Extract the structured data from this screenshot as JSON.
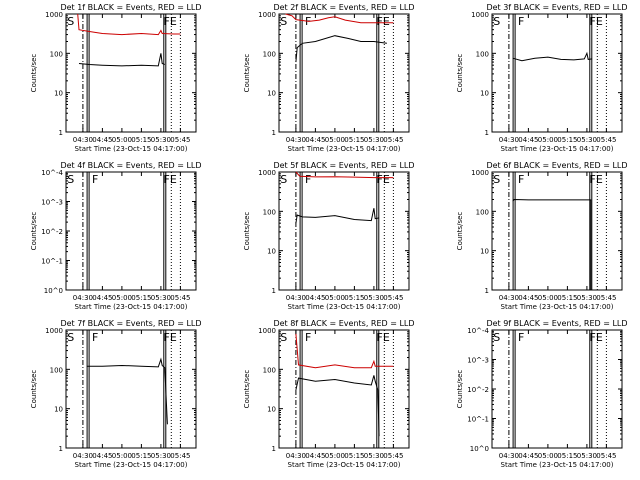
{
  "figure": {
    "colors": {
      "events": "#000000",
      "lld": "#cc0000",
      "axes": "#000000",
      "background": "#ffffff"
    },
    "time_ticks": [
      "04:30",
      "04:45",
      "05:00",
      "05:15",
      "05:30",
      "05:45"
    ],
    "y_ticks_linear": [
      "1",
      "10",
      "100",
      "1000"
    ],
    "y_ticks_exp": [
      "10^0",
      "10^-1",
      "10^-2",
      "10^-3",
      "10^-4"
    ]
  },
  "chart_data": [
    {
      "type": "line",
      "panel": 1,
      "title": "Det 1f BLACK = Events, RED = LLD",
      "ylabel": "Counts/sec",
      "xlabel": "Start Time (23-Oct-15 04:17:00)",
      "yscale": "log",
      "ylim": [
        1,
        1000
      ],
      "xlim": [
        "04:17",
        "05:57"
      ],
      "markers": [
        {
          "label": "S",
          "time": "04:18"
        },
        {
          "label": "FE",
          "time": "05:32"
        }
      ],
      "vlines": {
        "dashdot": [
          "04:30"
        ],
        "solid": [
          "04:34",
          "05:33"
        ],
        "dotted": [
          "05:38",
          "05:45"
        ]
      },
      "series": [
        {
          "color": "red",
          "points": [
            [
              "04:26",
              1000
            ],
            [
              "04:27",
              400
            ],
            [
              "04:35",
              360
            ],
            [
              "04:45",
              320
            ],
            [
              "05:00",
              300
            ],
            [
              "05:15",
              320
            ],
            [
              "05:28",
              300
            ],
            [
              "05:30",
              380
            ],
            [
              "05:31",
              320
            ],
            [
              "05:40",
              310
            ],
            [
              "05:45",
              310
            ]
          ]
        },
        {
          "color": "black",
          "points": [
            [
              "04:27",
              55
            ],
            [
              "04:35",
              52
            ],
            [
              "04:45",
              50
            ],
            [
              "05:00",
              48
            ],
            [
              "05:15",
              50
            ],
            [
              "05:28",
              48
            ],
            [
              "05:30",
              100
            ],
            [
              "05:31",
              55
            ],
            [
              "05:33",
              52
            ]
          ]
        }
      ]
    },
    {
      "type": "line",
      "panel": 2,
      "title": "Det 2f BLACK = Events, RED = LLD",
      "ylabel": "Counts/sec",
      "xlabel": "Start Time (23-Oct-15 04:17:00)",
      "yscale": "log",
      "ylim": [
        1,
        1000
      ],
      "xlim": [
        "04:17",
        "05:57"
      ],
      "markers": [
        {
          "label": "S",
          "time": "04:18"
        },
        {
          "label": "F",
          "time": "04:37"
        },
        {
          "label": "FE",
          "time": "05:32"
        }
      ],
      "vlines": {
        "dashdot": [
          "04:30"
        ],
        "solid": [
          "04:34",
          "05:33"
        ],
        "dotted": [
          "05:38",
          "05:45"
        ]
      },
      "series": [
        {
          "color": "red",
          "points": [
            [
              "04:22",
              1000
            ],
            [
              "04:27",
              900
            ],
            [
              "04:30",
              720
            ],
            [
              "04:40",
              650
            ],
            [
              "04:48",
              700
            ],
            [
              "04:55",
              800
            ],
            [
              "05:00",
              850
            ],
            [
              "05:08",
              700
            ],
            [
              "05:20",
              600
            ],
            [
              "05:32",
              600
            ],
            [
              "05:40",
              600
            ],
            [
              "05:45",
              600
            ]
          ]
        },
        {
          "color": "black",
          "points": [
            [
              "04:30",
              60
            ],
            [
              "04:31",
              140
            ],
            [
              "04:35",
              180
            ],
            [
              "04:45",
              200
            ],
            [
              "05:00",
              280
            ],
            [
              "05:10",
              240
            ],
            [
              "05:20",
              200
            ],
            [
              "05:30",
              200
            ],
            [
              "05:40",
              180
            ]
          ]
        }
      ]
    },
    {
      "type": "line",
      "panel": 3,
      "title": "Det 3f BLACK = Events, RED = LLD",
      "ylabel": "Counts/sec",
      "xlabel": "Start Time (23-Oct-15 04:17:00)",
      "yscale": "log",
      "ylim": [
        1,
        1000
      ],
      "xlim": [
        "04:17",
        "05:57"
      ],
      "markers": [
        {
          "label": "S",
          "time": "04:18"
        },
        {
          "label": "F",
          "time": "04:37"
        },
        {
          "label": "FE",
          "time": "05:32"
        }
      ],
      "vlines": {
        "dashdot": [
          "04:30"
        ],
        "solid": [
          "04:34",
          "05:33"
        ],
        "dotted": [
          "05:38",
          "05:45"
        ]
      },
      "series": [
        {
          "color": "black",
          "points": [
            [
              "04:33",
              75
            ],
            [
              "04:40",
              65
            ],
            [
              "04:50",
              75
            ],
            [
              "05:00",
              80
            ],
            [
              "05:10",
              70
            ],
            [
              "05:20",
              68
            ],
            [
              "05:28",
              72
            ],
            [
              "05:30",
              100
            ],
            [
              "05:31",
              70
            ],
            [
              "05:34",
              72
            ]
          ]
        }
      ]
    },
    {
      "type": "line",
      "panel": 4,
      "title": "Det 4f BLACK = Events, RED = LLD",
      "ylabel": "Counts/sec",
      "xlabel": "Start Time (23-Oct-15 04:17:00)",
      "yscale": "log",
      "ylim": [
        0.0001,
        1
      ],
      "xlim": [
        "04:17",
        "05:57"
      ],
      "markers": [
        {
          "label": "S",
          "time": "04:18"
        },
        {
          "label": "F",
          "time": "04:37"
        },
        {
          "label": "FE",
          "time": "05:32"
        }
      ],
      "vlines": {
        "dashdot": [
          "04:30"
        ],
        "solid": [
          "04:34",
          "05:33"
        ],
        "dotted": [
          "05:38",
          "05:45"
        ]
      },
      "series": []
    },
    {
      "type": "line",
      "panel": 5,
      "title": "Det 5f BLACK = Events, RED = LLD",
      "ylabel": "Counts/sec",
      "xlabel": "Start Time (23-Oct-15 04:17:00)",
      "yscale": "log",
      "ylim": [
        1,
        1000
      ],
      "xlim": [
        "04:17",
        "05:57"
      ],
      "markers": [
        {
          "label": "S",
          "time": "04:18"
        },
        {
          "label": "F",
          "time": "04:37"
        },
        {
          "label": "FE",
          "time": "05:32"
        }
      ],
      "vlines": {
        "dashdot": [
          "04:30"
        ],
        "solid": [
          "04:34",
          "05:33"
        ],
        "dotted": [
          "05:38",
          "05:45"
        ]
      },
      "series": [
        {
          "color": "red",
          "points": [
            [
              "04:30",
              1000
            ],
            [
              "04:33",
              780
            ],
            [
              "04:45",
              750
            ],
            [
              "05:00",
              760
            ],
            [
              "05:15",
              740
            ],
            [
              "05:30",
              720
            ],
            [
              "05:45",
              720
            ]
          ]
        },
        {
          "color": "black",
          "points": [
            [
              "04:30",
              50
            ],
            [
              "04:31",
              80
            ],
            [
              "04:35",
              72
            ],
            [
              "04:45",
              70
            ],
            [
              "05:00",
              78
            ],
            [
              "05:15",
              62
            ],
            [
              "05:28",
              58
            ],
            [
              "05:30",
              120
            ],
            [
              "05:31",
              65
            ],
            [
              "05:34",
              68
            ]
          ]
        }
      ]
    },
    {
      "type": "line",
      "panel": 6,
      "title": "Det 6f BLACK = Events, RED = LLD",
      "ylabel": "Counts/sec",
      "xlabel": "Start Time (23-Oct-15 04:17:00)",
      "yscale": "log",
      "ylim": [
        1,
        1000
      ],
      "xlim": [
        "04:17",
        "05:57"
      ],
      "markers": [
        {
          "label": "S",
          "time": "04:18"
        },
        {
          "label": "F",
          "time": "04:37"
        },
        {
          "label": "FE",
          "time": "05:32"
        }
      ],
      "vlines": {
        "dashdot": [
          "04:30"
        ],
        "solid": [
          "04:34",
          "05:33"
        ],
        "dotted": [
          "05:38",
          "05:45"
        ]
      },
      "series": [
        {
          "color": "black",
          "points": [
            [
              "04:33",
              180
            ],
            [
              "04:34",
              200
            ],
            [
              "04:45",
              195
            ],
            [
              "05:00",
              195
            ],
            [
              "05:15",
              195
            ],
            [
              "05:33",
              195
            ],
            [
              "05:33",
              1
            ]
          ]
        }
      ]
    },
    {
      "type": "line",
      "panel": 7,
      "title": "Det 7f BLACK = Events, RED = LLD",
      "ylabel": "Counts/sec",
      "xlabel": "Start Time (23-Oct-15 04:17:00)",
      "yscale": "log",
      "ylim": [
        1,
        1000
      ],
      "xlim": [
        "04:17",
        "05:57"
      ],
      "markers": [
        {
          "label": "S",
          "time": "04:18"
        },
        {
          "label": "F",
          "time": "04:37"
        },
        {
          "label": "FE",
          "time": "05:32"
        }
      ],
      "vlines": {
        "dashdot": [
          "04:30"
        ],
        "solid": [
          "04:34",
          "05:33"
        ],
        "dotted": [
          "05:38",
          "05:45"
        ]
      },
      "series": [
        {
          "color": "black",
          "points": [
            [
              "04:33",
              120
            ],
            [
              "04:45",
              120
            ],
            [
              "05:00",
              125
            ],
            [
              "05:15",
              120
            ],
            [
              "05:28",
              115
            ],
            [
              "05:30",
              180
            ],
            [
              "05:31",
              125
            ],
            [
              "05:33",
              110
            ],
            [
              "05:34",
              20
            ],
            [
              "05:35",
              4
            ]
          ]
        }
      ]
    },
    {
      "type": "line",
      "panel": 8,
      "title": "Det 8f BLACK = Events, RED = LLD",
      "ylabel": "Counts/sec",
      "xlabel": "Start Time (23-Oct-15 04:17:00)",
      "yscale": "log",
      "ylim": [
        1,
        1000
      ],
      "xlim": [
        "04:17",
        "05:57"
      ],
      "markers": [
        {
          "label": "S",
          "time": "04:18"
        },
        {
          "label": "F",
          "time": "04:37"
        },
        {
          "label": "FE",
          "time": "05:32"
        }
      ],
      "vlines": {
        "dashdot": [
          "04:30"
        ],
        "solid": [
          "04:34",
          "05:33"
        ],
        "dotted": [
          "05:38",
          "05:45"
        ]
      },
      "series": [
        {
          "color": "red",
          "points": [
            [
              "04:30",
              800
            ],
            [
              "04:32",
              130
            ],
            [
              "04:45",
              110
            ],
            [
              "05:00",
              130
            ],
            [
              "05:15",
              110
            ],
            [
              "05:28",
              110
            ],
            [
              "05:30",
              160
            ],
            [
              "05:31",
              120
            ],
            [
              "05:45",
              120
            ]
          ]
        },
        {
          "color": "black",
          "points": [
            [
              "04:30",
              30
            ],
            [
              "04:32",
              60
            ],
            [
              "04:45",
              50
            ],
            [
              "05:00",
              55
            ],
            [
              "05:15",
              45
            ],
            [
              "05:28",
              40
            ],
            [
              "05:30",
              70
            ],
            [
              "05:31",
              50
            ],
            [
              "05:33",
              30
            ],
            [
              "05:34",
              2
            ]
          ]
        }
      ]
    },
    {
      "type": "line",
      "panel": 9,
      "title": "Det 9f BLACK = Events, RED = LLD",
      "ylabel": "Counts/sec",
      "xlabel": "Start Time (23-Oct-15 04:17:00)",
      "yscale": "log",
      "ylim": [
        0.0001,
        1
      ],
      "xlim": [
        "04:17",
        "05:57"
      ],
      "markers": [
        {
          "label": "S",
          "time": "04:18"
        },
        {
          "label": "F",
          "time": "04:37"
        },
        {
          "label": "FE",
          "time": "05:32"
        }
      ],
      "vlines": {
        "dashdot": [
          "04:30"
        ],
        "solid": [
          "04:34",
          "05:33"
        ],
        "dotted": [
          "05:38",
          "05:45"
        ]
      },
      "series": []
    }
  ]
}
